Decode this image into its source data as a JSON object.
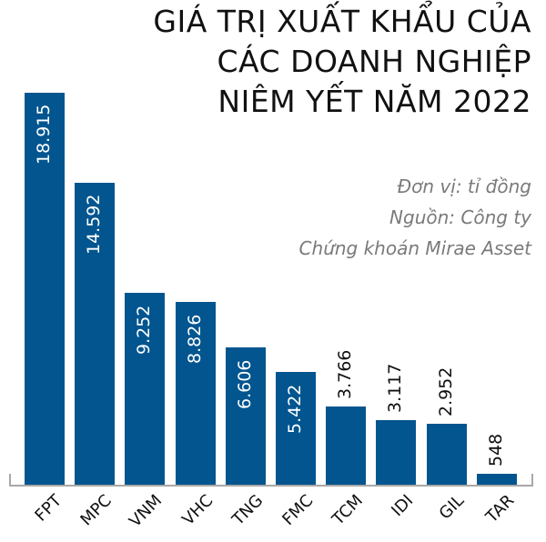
{
  "title": {
    "lines": [
      "GIÁ TRỊ XUẤT KHẨU CỦA",
      "CÁC DOANH NGHIỆP",
      "NIÊM YẾT NĂM 2022"
    ]
  },
  "meta": {
    "unit": "Đơn vị: tỉ đồng",
    "source_line1": "Nguồn: Công ty",
    "source_line2": "Chứng khoán Mirae Asset"
  },
  "colors": {
    "bar": "#02558f",
    "axis": "#a8a8a8"
  },
  "chart_data": {
    "type": "bar",
    "title": "GIÁ TRỊ XUẤT KHẨU CỦA CÁC DOANH NGHIỆP NIÊM YẾT NĂM 2022",
    "subtitle": "Đơn vị: tỉ đồng",
    "source": "Nguồn: Công ty Chứng khoán Mirae Asset",
    "xlabel": "",
    "ylabel": "",
    "categories": [
      "FPT",
      "MPC",
      "VNM",
      "VHC",
      "TNG",
      "FMC",
      "TCM",
      "IDI",
      "GIL",
      "TAR"
    ],
    "values": [
      18915,
      14592,
      9252,
      8826,
      6606,
      5422,
      3766,
      3117,
      2952,
      548
    ],
    "value_labels": [
      "18.915",
      "14.592",
      "9.252",
      "8.826",
      "6.606",
      "5.422",
      "3.766",
      "3.117",
      "2.952",
      "548"
    ],
    "ylim": [
      0,
      19000
    ],
    "grid": false,
    "legend": null
  }
}
